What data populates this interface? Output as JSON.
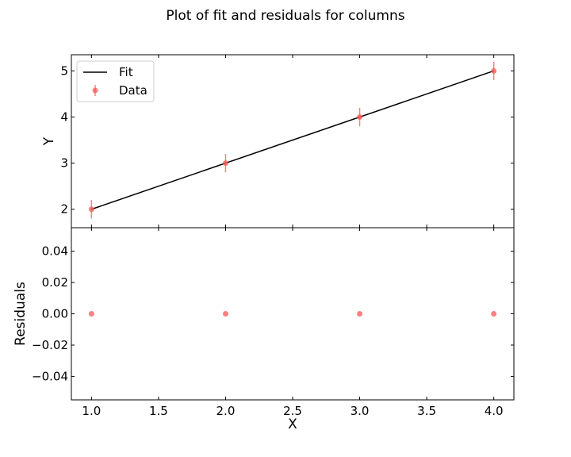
{
  "figure": {
    "title": "Plot of fit and residuals for columns"
  },
  "chart_data": [
    {
      "type": "line",
      "panel": "fit",
      "title": "",
      "xlabel": "",
      "ylabel": "Y",
      "xlim": [
        0.85,
        4.15
      ],
      "ylim": [
        1.6,
        5.35
      ],
      "yticks": [
        2,
        3,
        4,
        5
      ],
      "ytick_labels": [
        "2",
        "3",
        "4",
        "5"
      ],
      "xticks": [
        1.0,
        1.5,
        2.0,
        2.5,
        3.0,
        3.5,
        4.0
      ],
      "grid": false,
      "legend": "top-left",
      "series": [
        {
          "name": "Fit",
          "kind": "line",
          "color": "#000000",
          "x": [
            1,
            4
          ],
          "y": [
            2,
            5
          ]
        },
        {
          "name": "Data",
          "kind": "errorbar",
          "color": "#ff5555",
          "x": [
            1,
            2,
            3,
            4
          ],
          "y": [
            2,
            3,
            4,
            5
          ],
          "yerr": [
            0.2,
            0.2,
            0.2,
            0.2
          ]
        }
      ]
    },
    {
      "type": "scatter",
      "panel": "residuals",
      "title": "",
      "xlabel": "X",
      "ylabel": "Residuals",
      "xlim": [
        0.85,
        4.15
      ],
      "ylim": [
        -0.055,
        0.055
      ],
      "xticks": [
        1.0,
        1.5,
        2.0,
        2.5,
        3.0,
        3.5,
        4.0
      ],
      "xtick_labels": [
        "1.0",
        "1.5",
        "2.0",
        "2.5",
        "3.0",
        "3.5",
        "4.0"
      ],
      "yticks": [
        -0.04,
        -0.02,
        0.0,
        0.02,
        0.04
      ],
      "ytick_labels": [
        "−0.04",
        "−0.02",
        "0.00",
        "0.02",
        "0.04"
      ],
      "grid": false,
      "series": [
        {
          "kind": "scatter",
          "color": "#ff5555",
          "x": [
            1,
            2,
            3,
            4
          ],
          "y": [
            0,
            0,
            0,
            0
          ]
        }
      ]
    }
  ]
}
